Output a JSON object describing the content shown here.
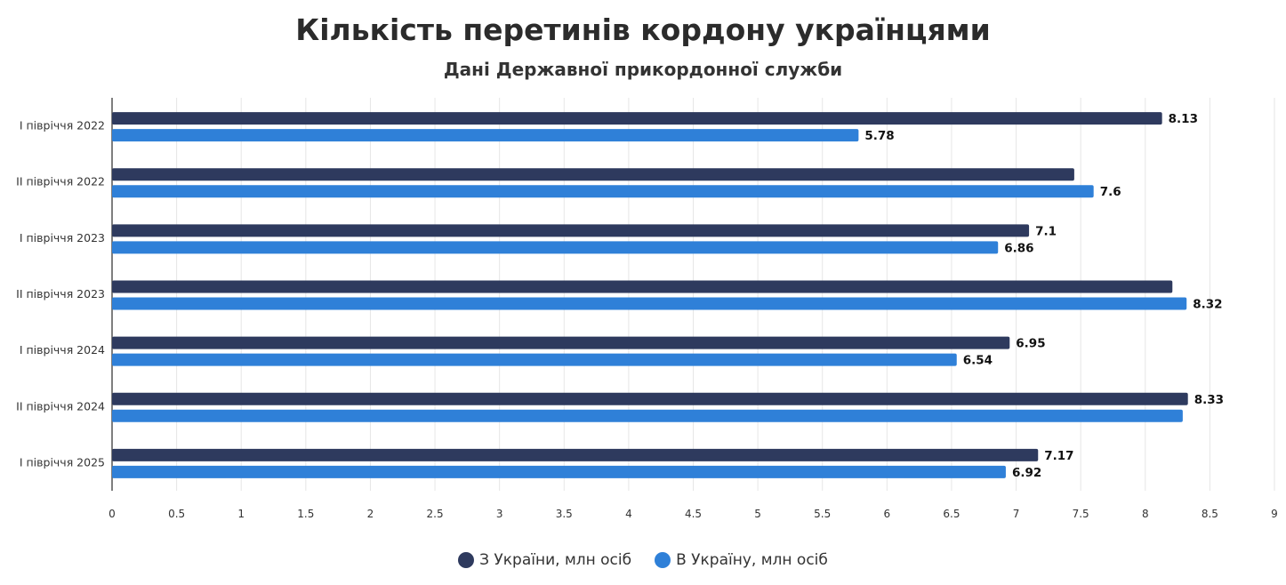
{
  "chart_data": {
    "type": "bar",
    "orientation": "horizontal",
    "title": "Кількість перетинів кордону українцями",
    "subtitle": "Дані Державної прикордонної служби",
    "categories": [
      "I півріччя 2022",
      "II півріччя 2022",
      "I півріччя 2023",
      "II півріччя 2023",
      "I півріччя 2024",
      "II півріччя 2024",
      "I півріччя 2025"
    ],
    "series": [
      {
        "name": "З України, млн осіб",
        "color": "#2e3a5e",
        "values": [
          8.13,
          7.45,
          7.1,
          8.21,
          6.95,
          8.33,
          7.17
        ],
        "labels": [
          "8.13",
          "",
          "7.1",
          "",
          "6.95",
          "8.33",
          "7.17"
        ]
      },
      {
        "name": "В Україну, млн осіб",
        "color": "#2f80d8",
        "values": [
          5.78,
          7.6,
          6.86,
          8.32,
          6.54,
          8.29,
          6.92
        ],
        "labels": [
          "5.78",
          "7.6",
          "6.86",
          "8.32",
          "6.54",
          "",
          "6.92"
        ]
      }
    ],
    "xlim": [
      0,
      9
    ],
    "xticks": [
      "0",
      "0.5",
      "1",
      "1.5",
      "2",
      "2.5",
      "3",
      "3.5",
      "4",
      "4.5",
      "5",
      "5.5",
      "6",
      "6.5",
      "7",
      "7.5",
      "8",
      "8.5",
      "9"
    ],
    "grid": true,
    "legend_position": "bottom"
  }
}
